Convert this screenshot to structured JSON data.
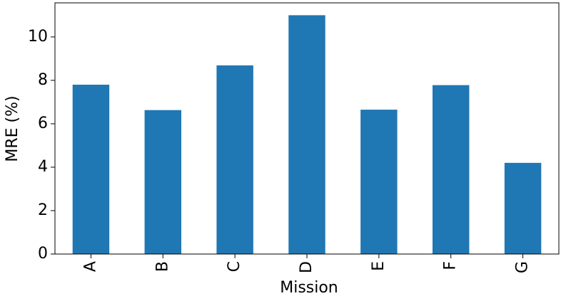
{
  "chart_data": {
    "type": "bar",
    "x_label": "Mission",
    "y_label": "MRE (%)",
    "categories": [
      "A",
      "B",
      "C",
      "D",
      "E",
      "F",
      "G"
    ],
    "values": [
      7.8,
      6.63,
      8.69,
      11.0,
      6.65,
      7.78,
      4.2
    ],
    "color": "#1f77b4",
    "ylim": [
      0,
      11.57
    ],
    "yticks": [
      0,
      2,
      4,
      6,
      8,
      10
    ]
  }
}
